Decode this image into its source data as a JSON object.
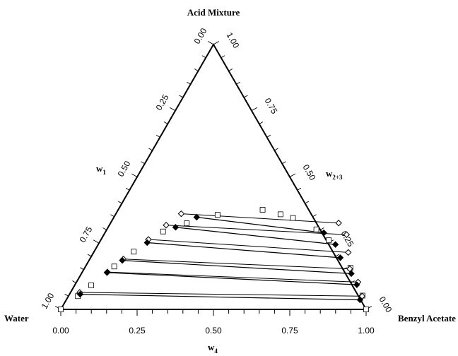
{
  "chart_data": {
    "type": "ternary",
    "vertex_labels": {
      "top": "Acid Mixture",
      "left": "Water",
      "right": "Benzyl Acetate"
    },
    "axis_labels": {
      "left_side": {
        "main": "w",
        "sub": "1"
      },
      "right_side": {
        "main": "w",
        "sub": "2+3"
      },
      "bottom": {
        "main": "w",
        "sub": "4"
      }
    },
    "ticks": {
      "bottom": [
        "0.00",
        "0.25",
        "0.50",
        "0.75",
        "1.00"
      ],
      "left_side": [
        "0.00",
        "0.25",
        "0.50",
        "0.75",
        "1.00"
      ],
      "right_side": [
        "1.00",
        "0.75",
        "0.50",
        "0.25",
        "0.00"
      ]
    },
    "tie_lines_filled": [
      {
        "aq": {
          "x": 0.271,
          "y": 0.348
        },
        "org": {
          "x": 0.717,
          "y": 0.289
        }
      },
      {
        "aq": {
          "x": 0.221,
          "y": 0.31
        },
        "org": {
          "x": 0.777,
          "y": 0.245
        }
      },
      {
        "aq": {
          "x": 0.157,
          "y": 0.252
        },
        "org": {
          "x": 0.818,
          "y": 0.195
        }
      },
      {
        "aq": {
          "x": 0.109,
          "y": 0.185
        },
        "org": {
          "x": 0.884,
          "y": 0.135
        }
      },
      {
        "aq": {
          "x": 0.082,
          "y": 0.139
        },
        "org": {
          "x": 0.923,
          "y": 0.093
        }
      },
      {
        "aq": {
          "x": 0.035,
          "y": 0.057
        },
        "org": {
          "x": 0.962,
          "y": 0.036
        }
      }
    ],
    "tie_lines_open": [
      {
        "aq": {
          "x": 0.214,
          "y": 0.361
        },
        "org": {
          "x": 0.747,
          "y": 0.326
        }
      },
      {
        "aq": {
          "x": 0.186,
          "y": 0.318
        },
        "org": {
          "x": 0.795,
          "y": 0.282
        }
      },
      {
        "aq": {
          "x": 0.155,
          "y": 0.264
        },
        "org": {
          "x": 0.834,
          "y": 0.215
        }
      },
      {
        "aq": {
          "x": 0.11,
          "y": 0.19
        },
        "org": {
          "x": 0.87,
          "y": 0.153
        }
      },
      {
        "aq": {
          "x": 0.082,
          "y": 0.141
        },
        "org": {
          "x": 0.922,
          "y": 0.103
        }
      },
      {
        "aq": {
          "x": 0.03,
          "y": 0.064
        },
        "org": {
          "x": 0.962,
          "y": 0.05
        }
      }
    ],
    "binodal_open_squares": [
      {
        "x": 0.0,
        "y": 0.0
      },
      {
        "x": 0.031,
        "y": 0.05
      },
      {
        "x": 0.054,
        "y": 0.091
      },
      {
        "x": 0.094,
        "y": 0.162
      },
      {
        "x": 0.13,
        "y": 0.218
      },
      {
        "x": 0.188,
        "y": 0.294
      },
      {
        "x": 0.25,
        "y": 0.325
      },
      {
        "x": 0.335,
        "y": 0.357
      },
      {
        "x": 0.473,
        "y": 0.376
      },
      {
        "x": 0.54,
        "y": 0.359
      },
      {
        "x": 0.588,
        "y": 0.345
      },
      {
        "x": 0.686,
        "y": 0.302
      },
      {
        "x": 0.747,
        "y": 0.261
      },
      {
        "x": 0.87,
        "y": 0.157
      },
      {
        "x": 0.962,
        "y": 0.052
      },
      {
        "x": 1.0,
        "y": 0.0
      }
    ]
  }
}
